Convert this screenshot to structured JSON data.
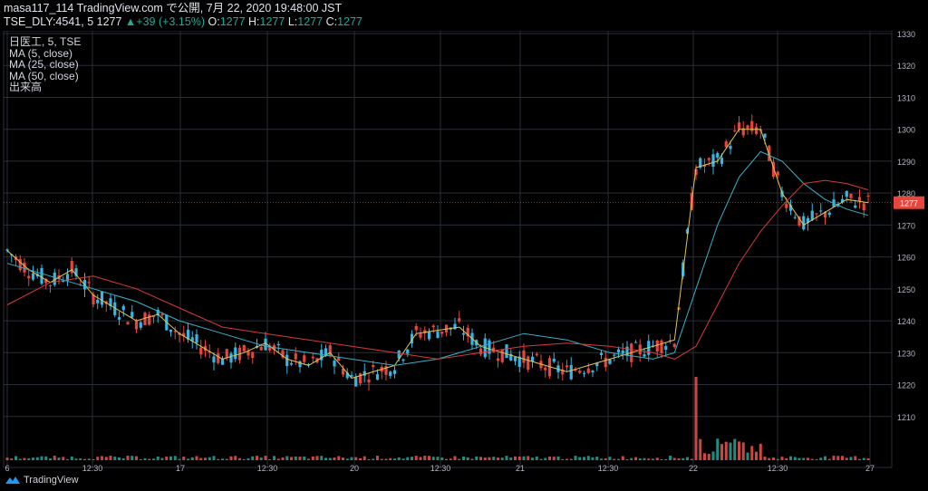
{
  "header": {
    "line1": "masa117_114 TradingView.com で公開, 7月 22, 2020 19:48:00 JST",
    "symbol": "TSE_DLY:4541, 5",
    "last": "1277",
    "change_arrow": "▲",
    "change": "+39 (+3.15%)",
    "o_label": "O:",
    "o_value": "1277",
    "h_label": "H:",
    "h_value": "1277",
    "l_label": "L:",
    "l_value": "1277",
    "c_label": "C:",
    "c_value": "1277"
  },
  "legend": {
    "items": [
      "日医工, 5, TSE",
      "MA (5, close)",
      "MA (25, close)",
      "MA (50, close)",
      "出来高"
    ]
  },
  "footer": {
    "brand": "TradingView",
    "logo_icon": "tradingview-logo-icon"
  },
  "colors": {
    "up": "#26a69a",
    "down": "#ef5350",
    "candle_up": "#37b6e3",
    "candle_down": "#e8463c",
    "ma5": "#e0c454",
    "ma25": "#38b0c8",
    "ma50": "#d83a3a",
    "grid": "#2a2e39",
    "price_line": "#e8463c"
  },
  "chart_data": {
    "type": "line",
    "title": "日医工, 5, TSE",
    "ylim": [
      1200,
      1330
    ],
    "y_ticks": [
      1210,
      1220,
      1230,
      1240,
      1250,
      1260,
      1270,
      1280,
      1290,
      1300,
      1310,
      1320,
      1330
    ],
    "x_ticks": [
      "6",
      "12:30",
      "17",
      "12:30",
      "20",
      "12:30",
      "21",
      "12:30",
      "22",
      "12:30",
      "27"
    ],
    "last_price": 1277,
    "grid": true,
    "series": [
      {
        "name": "MA (5, close)",
        "x": [
          0,
          5,
          10,
          15,
          20,
          25,
          30,
          35,
          40,
          45,
          50,
          55,
          60,
          65,
          70,
          75,
          80,
          85,
          90,
          95,
          100,
          105,
          110,
          115,
          120,
          125,
          130,
          135,
          140,
          145,
          150,
          155,
          160,
          165,
          170,
          175,
          180,
          185,
          190,
          195,
          200
        ],
        "values": [
          1262,
          1256,
          1252,
          1256,
          1248,
          1244,
          1240,
          1242,
          1236,
          1232,
          1228,
          1230,
          1233,
          1228,
          1226,
          1230,
          1222,
          1224,
          1226,
          1236,
          1237,
          1238,
          1232,
          1230,
          1228,
          1226,
          1224,
          1226,
          1228,
          1230,
          1232,
          1234,
          1288,
          1290,
          1300,
          1300,
          1280,
          1270,
          1274,
          1278,
          1277
        ]
      },
      {
        "name": "MA (25, close)",
        "x": [
          0,
          10,
          20,
          30,
          40,
          50,
          60,
          70,
          80,
          90,
          100,
          110,
          120,
          130,
          140,
          150,
          155,
          160,
          165,
          170,
          175,
          180,
          185,
          190,
          195,
          200
        ],
        "values": [
          1258,
          1254,
          1250,
          1246,
          1240,
          1236,
          1232,
          1230,
          1228,
          1226,
          1228,
          1232,
          1236,
          1234,
          1230,
          1228,
          1230,
          1250,
          1270,
          1285,
          1293,
          1290,
          1283,
          1278,
          1275,
          1273
        ]
      },
      {
        "name": "MA (50, close)",
        "x": [
          0,
          10,
          20,
          30,
          40,
          50,
          60,
          70,
          80,
          90,
          100,
          110,
          120,
          130,
          140,
          150,
          155,
          160,
          165,
          170,
          175,
          180,
          185,
          190,
          195,
          200
        ],
        "values": [
          1245,
          1252,
          1254,
          1250,
          1244,
          1238,
          1236,
          1234,
          1232,
          1230,
          1228,
          1230,
          1232,
          1233,
          1232,
          1230,
          1228,
          1232,
          1245,
          1258,
          1268,
          1276,
          1283,
          1284,
          1283,
          1281
        ]
      }
    ]
  }
}
